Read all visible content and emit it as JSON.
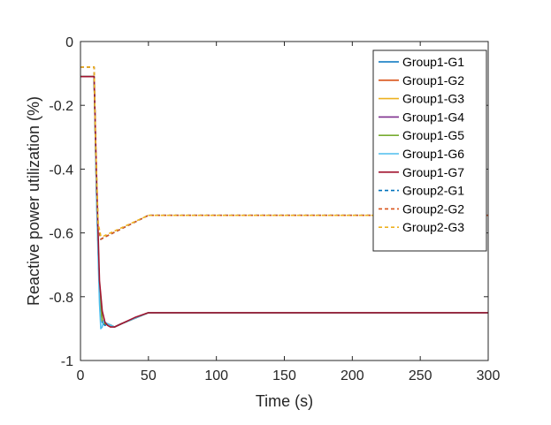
{
  "chart_data": {
    "type": "line",
    "title": "",
    "xlabel": "Time (s)",
    "ylabel": "Reactive power utilization (%)",
    "xlim": [
      0,
      300
    ],
    "ylim": [
      -1,
      0
    ],
    "xticks": [
      0,
      50,
      100,
      150,
      200,
      250,
      300
    ],
    "yticks": [
      0,
      -0.2,
      -0.4,
      -0.6,
      -0.8,
      -1
    ],
    "xtick_labels": [
      "0",
      "50",
      "100",
      "150",
      "200",
      "250",
      "300"
    ],
    "ytick_labels": [
      "0",
      "-0.2",
      "-0.4",
      "-0.6",
      "-0.8",
      "-1"
    ],
    "grid": false,
    "legend_position": "top-right",
    "series": [
      {
        "name": "Group1-G1",
        "color": "#0072BD",
        "dash": "solid",
        "x": [
          0,
          10,
          12,
          14,
          16,
          18,
          20,
          25,
          30,
          50,
          300
        ],
        "y": [
          -0.11,
          -0.11,
          -0.5,
          -0.78,
          -0.88,
          -0.89,
          -0.885,
          -0.895,
          -0.885,
          -0.85,
          -0.85
        ]
      },
      {
        "name": "Group1-G2",
        "color": "#D95319",
        "dash": "solid",
        "x": [
          0,
          10,
          12,
          14,
          16,
          18,
          20,
          25,
          30,
          50,
          300
        ],
        "y": [
          -0.11,
          -0.11,
          -0.5,
          -0.78,
          -0.875,
          -0.885,
          -0.885,
          -0.895,
          -0.885,
          -0.85,
          -0.85
        ]
      },
      {
        "name": "Group1-G3",
        "color": "#EDB120",
        "dash": "solid",
        "x": [
          0,
          10,
          12,
          14,
          16,
          18,
          20,
          25,
          30,
          50,
          300
        ],
        "y": [
          -0.11,
          -0.11,
          -0.5,
          -0.78,
          -0.875,
          -0.885,
          -0.885,
          -0.895,
          -0.885,
          -0.85,
          -0.85
        ]
      },
      {
        "name": "Group1-G4",
        "color": "#7E2F8E",
        "dash": "solid",
        "x": [
          0,
          10,
          12,
          14,
          16,
          18,
          20,
          25,
          30,
          50,
          300
        ],
        "y": [
          -0.11,
          -0.11,
          -0.5,
          -0.78,
          -0.875,
          -0.885,
          -0.885,
          -0.895,
          -0.885,
          -0.85,
          -0.85
        ]
      },
      {
        "name": "Group1-G5",
        "color": "#77AC30",
        "dash": "solid",
        "x": [
          0,
          10,
          12,
          14,
          16,
          18,
          20,
          25,
          30,
          50,
          300
        ],
        "y": [
          -0.11,
          -0.11,
          -0.5,
          -0.78,
          -0.875,
          -0.885,
          -0.885,
          -0.895,
          -0.885,
          -0.85,
          -0.85
        ]
      },
      {
        "name": "Group1-G6",
        "color": "#4DBEEE",
        "dash": "solid",
        "x": [
          0,
          10,
          12,
          14,
          15,
          16,
          17,
          18,
          20,
          25,
          30,
          50,
          300
        ],
        "y": [
          -0.11,
          -0.11,
          -0.52,
          -0.82,
          -0.9,
          -0.895,
          -0.875,
          -0.88,
          -0.885,
          -0.895,
          -0.885,
          -0.85,
          -0.85
        ]
      },
      {
        "name": "Group1-G7",
        "color": "#A2142F",
        "dash": "solid",
        "x": [
          0,
          10,
          12,
          14,
          16,
          18,
          20,
          22,
          25,
          30,
          40,
          50,
          300
        ],
        "y": [
          -0.11,
          -0.11,
          -0.45,
          -0.75,
          -0.845,
          -0.88,
          -0.89,
          -0.895,
          -0.895,
          -0.885,
          -0.865,
          -0.85,
          -0.85
        ]
      },
      {
        "name": "Group2-G1",
        "color": "#0072BD",
        "dash": "dashed",
        "x": [
          0,
          10,
          11,
          13,
          15,
          17,
          50,
          300
        ],
        "y": [
          -0.08,
          -0.08,
          -0.3,
          -0.58,
          -0.62,
          -0.615,
          -0.545,
          -0.545
        ]
      },
      {
        "name": "Group2-G2",
        "color": "#D95319",
        "dash": "dashed",
        "x": [
          0,
          10,
          11,
          13,
          15,
          17,
          50,
          300
        ],
        "y": [
          -0.08,
          -0.08,
          -0.3,
          -0.58,
          -0.62,
          -0.615,
          -0.545,
          -0.545
        ]
      },
      {
        "name": "Group2-G3",
        "color": "#EDB120",
        "dash": "dashed",
        "x": [
          0,
          10,
          11,
          13,
          15,
          17,
          50,
          300
        ],
        "y": [
          -0.08,
          -0.08,
          -0.3,
          -0.57,
          -0.61,
          -0.61,
          -0.545,
          -0.545
        ]
      }
    ]
  }
}
